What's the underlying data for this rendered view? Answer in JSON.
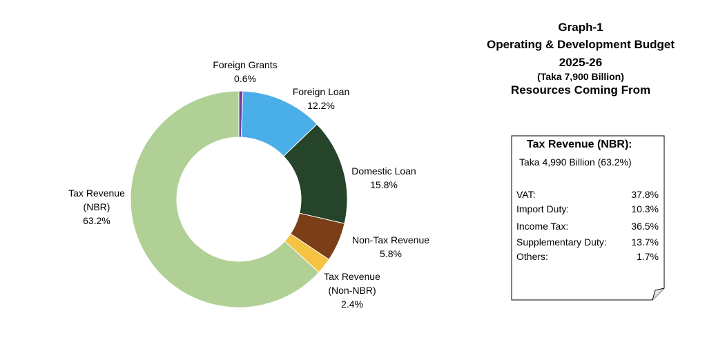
{
  "title": {
    "line1": "Graph-1",
    "line2": "Operating & Development Budget",
    "line3": "2025-26",
    "line4": "(Taka 7,900 Billion)",
    "line5": "Resources Coming From"
  },
  "chart_data": {
    "type": "pie",
    "donut": true,
    "categories": [
      "Foreign Grants",
      "Foreign Loan",
      "Domestic Loan",
      "Non-Tax Revenue",
      "Tax Revenue (Non-NBR)",
      "Tax Revenue (NBR)"
    ],
    "values": [
      0.6,
      12.2,
      15.8,
      5.8,
      2.4,
      63.2
    ],
    "label_lines": [
      [
        "Foreign Grants",
        "0.6%"
      ],
      [
        "Foreign Loan",
        "12.2%"
      ],
      [
        "Domestic Loan",
        "15.8%"
      ],
      [
        "Non-Tax Revenue",
        "5.8%"
      ],
      [
        "Tax Revenue",
        "(Non-NBR)",
        "2.4%"
      ],
      [
        "Tax Revenue",
        "(NBR)",
        "63.2%"
      ]
    ],
    "colors": [
      "#7040a0",
      "#4aaee8",
      "#254429",
      "#7b3f17",
      "#f5c242",
      "#b0d096"
    ]
  },
  "note": {
    "heading": "Tax Revenue (NBR):",
    "subheading": "Taka 4,990 Billion (63.2%)",
    "rows": [
      {
        "label": "VAT:",
        "value": "37.8%"
      },
      {
        "label": "Import Duty:",
        "value": "10.3%"
      },
      {
        "label": "Income Tax:",
        "value": "36.5%"
      },
      {
        "label": "Supplementary Duty:",
        "value": "13.7%"
      },
      {
        "label": "Others:",
        "value": "1.7%"
      }
    ]
  }
}
